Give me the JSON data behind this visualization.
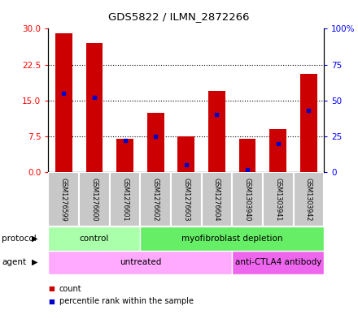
{
  "title": "GDS5822 / ILMN_2872266",
  "samples": [
    "GSM1276599",
    "GSM1276600",
    "GSM1276601",
    "GSM1276602",
    "GSM1276603",
    "GSM1276604",
    "GSM1303940",
    "GSM1303941",
    "GSM1303942"
  ],
  "counts": [
    29,
    27,
    7,
    12.5,
    7.5,
    17,
    7,
    9,
    20.5
  ],
  "percentiles": [
    55,
    52,
    22,
    25,
    5,
    40,
    2,
    20,
    43
  ],
  "ylim_left": [
    0,
    30
  ],
  "ylim_right": [
    0,
    100
  ],
  "yticks_left": [
    0,
    7.5,
    15,
    22.5,
    30
  ],
  "yticks_right": [
    0,
    25,
    50,
    75,
    100
  ],
  "ytick_labels_right": [
    "0",
    "25",
    "50",
    "75",
    "100%"
  ],
  "bar_color": "#cc0000",
  "dot_color": "#0000cc",
  "protocol_groups": [
    {
      "label": "control",
      "start": 0,
      "end": 3,
      "color": "#aaffaa"
    },
    {
      "label": "myofibroblast depletion",
      "start": 3,
      "end": 9,
      "color": "#66ee66"
    }
  ],
  "agent_groups": [
    {
      "label": "untreated",
      "start": 0,
      "end": 6,
      "color": "#ffaaff"
    },
    {
      "label": "anti-CTLA4 antibody",
      "start": 6,
      "end": 9,
      "color": "#ee66ee"
    }
  ],
  "legend_count_label": "count",
  "legend_percentile_label": "percentile rank within the sample",
  "grid_color": "black",
  "background_color": "#ffffff",
  "label_protocol": "protocol",
  "label_agent": "agent",
  "sample_bg_color": "#c8c8c8",
  "sample_border_color": "#ffffff"
}
